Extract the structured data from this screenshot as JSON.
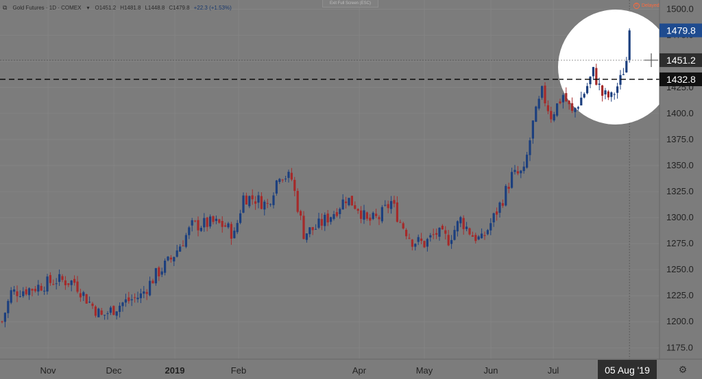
{
  "header": {
    "symbol": "Gold Futures · 1D · COMEX",
    "open": "O1451.2",
    "high": "H1481.8",
    "low": "L1448.8",
    "close": "C1479.8",
    "change": "+22.3 (+1.53%)"
  },
  "exit_label": "Exit Full Screen (ESC)",
  "delayed_label": "Delayed",
  "price_tags": {
    "last": "1479.8",
    "crosshair": "1451.2",
    "level": "1432.8"
  },
  "crosshair_date": "05 Aug '19",
  "colors": {
    "background": "#7c7c7c",
    "up": "#1c3f7e",
    "down": "#a52a2a",
    "last_tag": "#1e4b8f",
    "dark_tag": "#2e2e2e"
  },
  "chart_data": {
    "type": "candlestick",
    "y_ticks": [
      1175,
      1200,
      1225,
      1250,
      1275,
      1300,
      1325,
      1350,
      1375,
      1400,
      1425,
      1450,
      1475,
      1500
    ],
    "x_labels": [
      "Nov",
      "Dec",
      "2019",
      "Feb",
      "Apr",
      "May",
      "Jun",
      "Jul"
    ],
    "ylim": [
      1164,
      1509
    ],
    "grid": true,
    "horizontal_line": 1432.8,
    "close_path": [
      [
        0,
        1200
      ],
      [
        3,
        1228
      ],
      [
        10,
        1232
      ],
      [
        18,
        1240
      ],
      [
        24,
        1238
      ],
      [
        28,
        1222
      ],
      [
        33,
        1205
      ],
      [
        40,
        1218
      ],
      [
        46,
        1225
      ],
      [
        51,
        1245
      ],
      [
        56,
        1260
      ],
      [
        60,
        1278
      ],
      [
        63,
        1292
      ],
      [
        70,
        1295
      ],
      [
        74,
        1292
      ],
      [
        77,
        1283
      ],
      [
        80,
        1320
      ],
      [
        84,
        1318
      ],
      [
        88,
        1312
      ],
      [
        92,
        1343
      ],
      [
        96,
        1337
      ],
      [
        100,
        1285
      ],
      [
        104,
        1290
      ],
      [
        110,
        1305
      ],
      [
        114,
        1319
      ],
      [
        118,
        1310
      ],
      [
        121,
        1296
      ],
      [
        125,
        1300
      ],
      [
        129,
        1315
      ],
      [
        132,
        1296
      ],
      [
        136,
        1278
      ],
      [
        140,
        1275
      ],
      [
        144,
        1285
      ],
      [
        148,
        1279
      ],
      [
        152,
        1298
      ],
      [
        156,
        1283
      ],
      [
        159,
        1278
      ],
      [
        163,
        1300
      ],
      [
        166,
        1318
      ],
      [
        169,
        1340
      ],
      [
        173,
        1343
      ],
      [
        176,
        1390
      ],
      [
        179,
        1420
      ],
      [
        182,
        1398
      ],
      [
        186,
        1418
      ],
      [
        189,
        1400
      ],
      [
        193,
        1420
      ],
      [
        196,
        1440
      ],
      [
        199,
        1418
      ],
      [
        202,
        1415
      ],
      [
        205,
        1432
      ],
      [
        207,
        1451
      ],
      [
        208,
        1479.8
      ]
    ]
  }
}
